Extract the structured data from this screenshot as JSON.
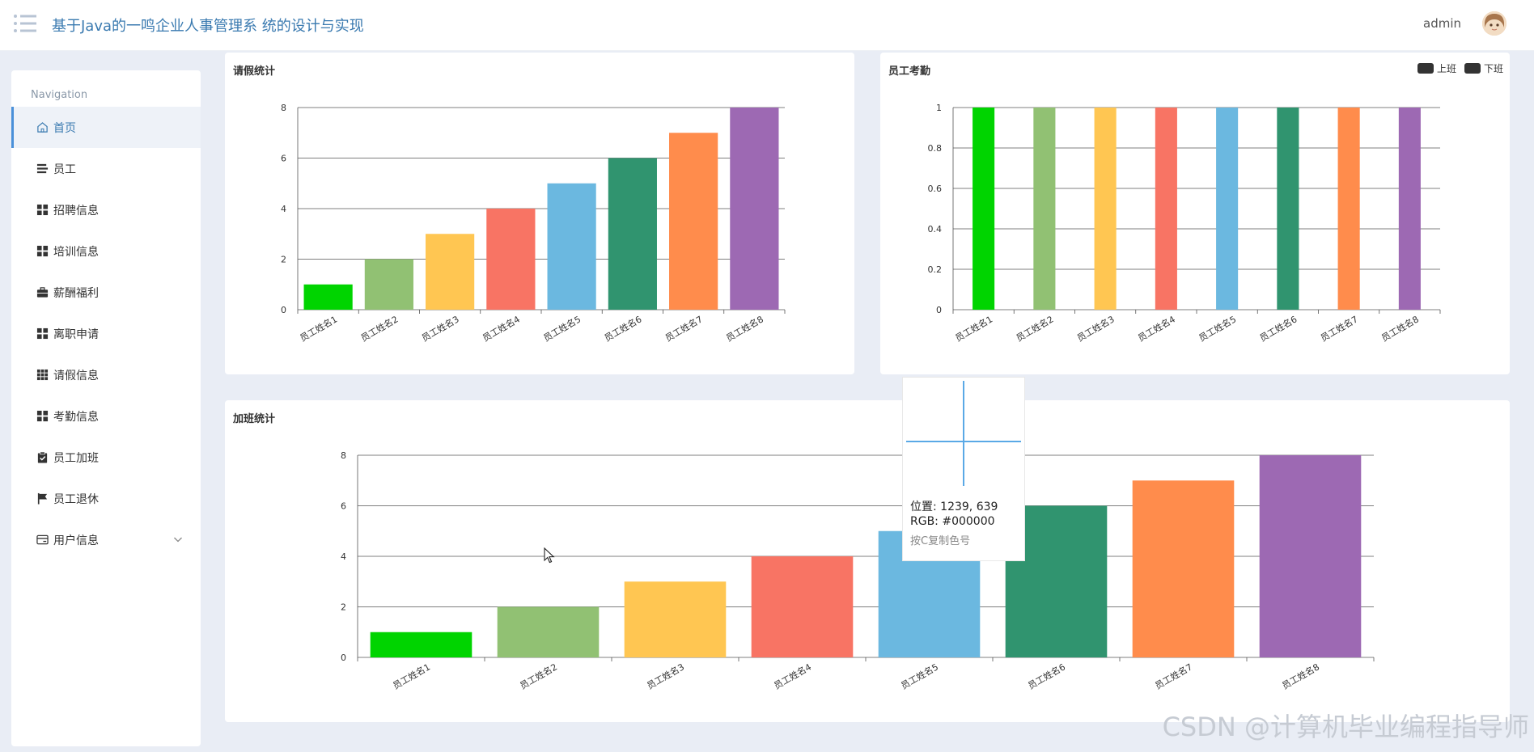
{
  "header": {
    "title": "基于Java的一鸣企业人事管理系 统的设计与实现",
    "user": "admin"
  },
  "sidebar": {
    "heading": "Navigation",
    "items": [
      {
        "label": "首页",
        "icon": "home-icon"
      },
      {
        "label": "员工",
        "icon": "list-icon"
      },
      {
        "label": "招聘信息",
        "icon": "grid-icon"
      },
      {
        "label": "培训信息",
        "icon": "grid-icon"
      },
      {
        "label": "薪酬福利",
        "icon": "briefcase-icon"
      },
      {
        "label": "离职申请",
        "icon": "grid-icon"
      },
      {
        "label": "请假信息",
        "icon": "grid9-icon"
      },
      {
        "label": "考勤信息",
        "icon": "grid-icon"
      },
      {
        "label": "员工加班",
        "icon": "clipboard-icon"
      },
      {
        "label": "员工退休",
        "icon": "flag-icon"
      },
      {
        "label": "用户信息",
        "icon": "card-icon"
      }
    ]
  },
  "colors": [
    "#00d400",
    "#91c173",
    "#ffc652",
    "#f87464",
    "#6bb8e0",
    "#30946f",
    "#ff8c4c",
    "#9d69b3"
  ],
  "chart_data": [
    {
      "type": "bar",
      "title": "请假统计",
      "categories": [
        "员工姓名1",
        "员工姓名2",
        "员工姓名3",
        "员工姓名4",
        "员工姓名5",
        "员工姓名6",
        "员工姓名7",
        "员工姓名8"
      ],
      "values": [
        1,
        2,
        3,
        4,
        5,
        6,
        7,
        8
      ],
      "ylim": [
        0,
        8
      ],
      "yticks": [
        "0",
        "2",
        "4",
        "6",
        "8"
      ]
    },
    {
      "type": "bar",
      "title": "员工考勤",
      "legend": [
        "上班",
        "下班"
      ],
      "categories": [
        "员工姓名1",
        "员工姓名2",
        "员工姓名3",
        "员工姓名4",
        "员工姓名5",
        "员工姓名6",
        "员工姓名7",
        "员工姓名8"
      ],
      "values": [
        1,
        1,
        1,
        1,
        1,
        1,
        1,
        1
      ],
      "ylim": [
        0,
        1
      ],
      "yticks": [
        "0",
        "0.2",
        "0.4",
        "0.6",
        "0.8",
        "1"
      ]
    },
    {
      "type": "bar",
      "title": "加班统计",
      "categories": [
        "员工姓名1",
        "员工姓名2",
        "员工姓名3",
        "员工姓名4",
        "员工姓名5",
        "员工姓名6",
        "员工姓名7",
        "员工姓名8"
      ],
      "values": [
        1,
        2,
        3,
        4,
        5,
        6,
        7,
        8
      ],
      "ylim": [
        0,
        8
      ],
      "yticks": [
        "0",
        "2",
        "4",
        "6",
        "8"
      ]
    }
  ],
  "color_picker": {
    "position": "位置: 1239, 639",
    "rgb": "RGB: #000000",
    "hint": "按C复制色号"
  },
  "watermark": "CSDN @计算机毕业编程指导师"
}
